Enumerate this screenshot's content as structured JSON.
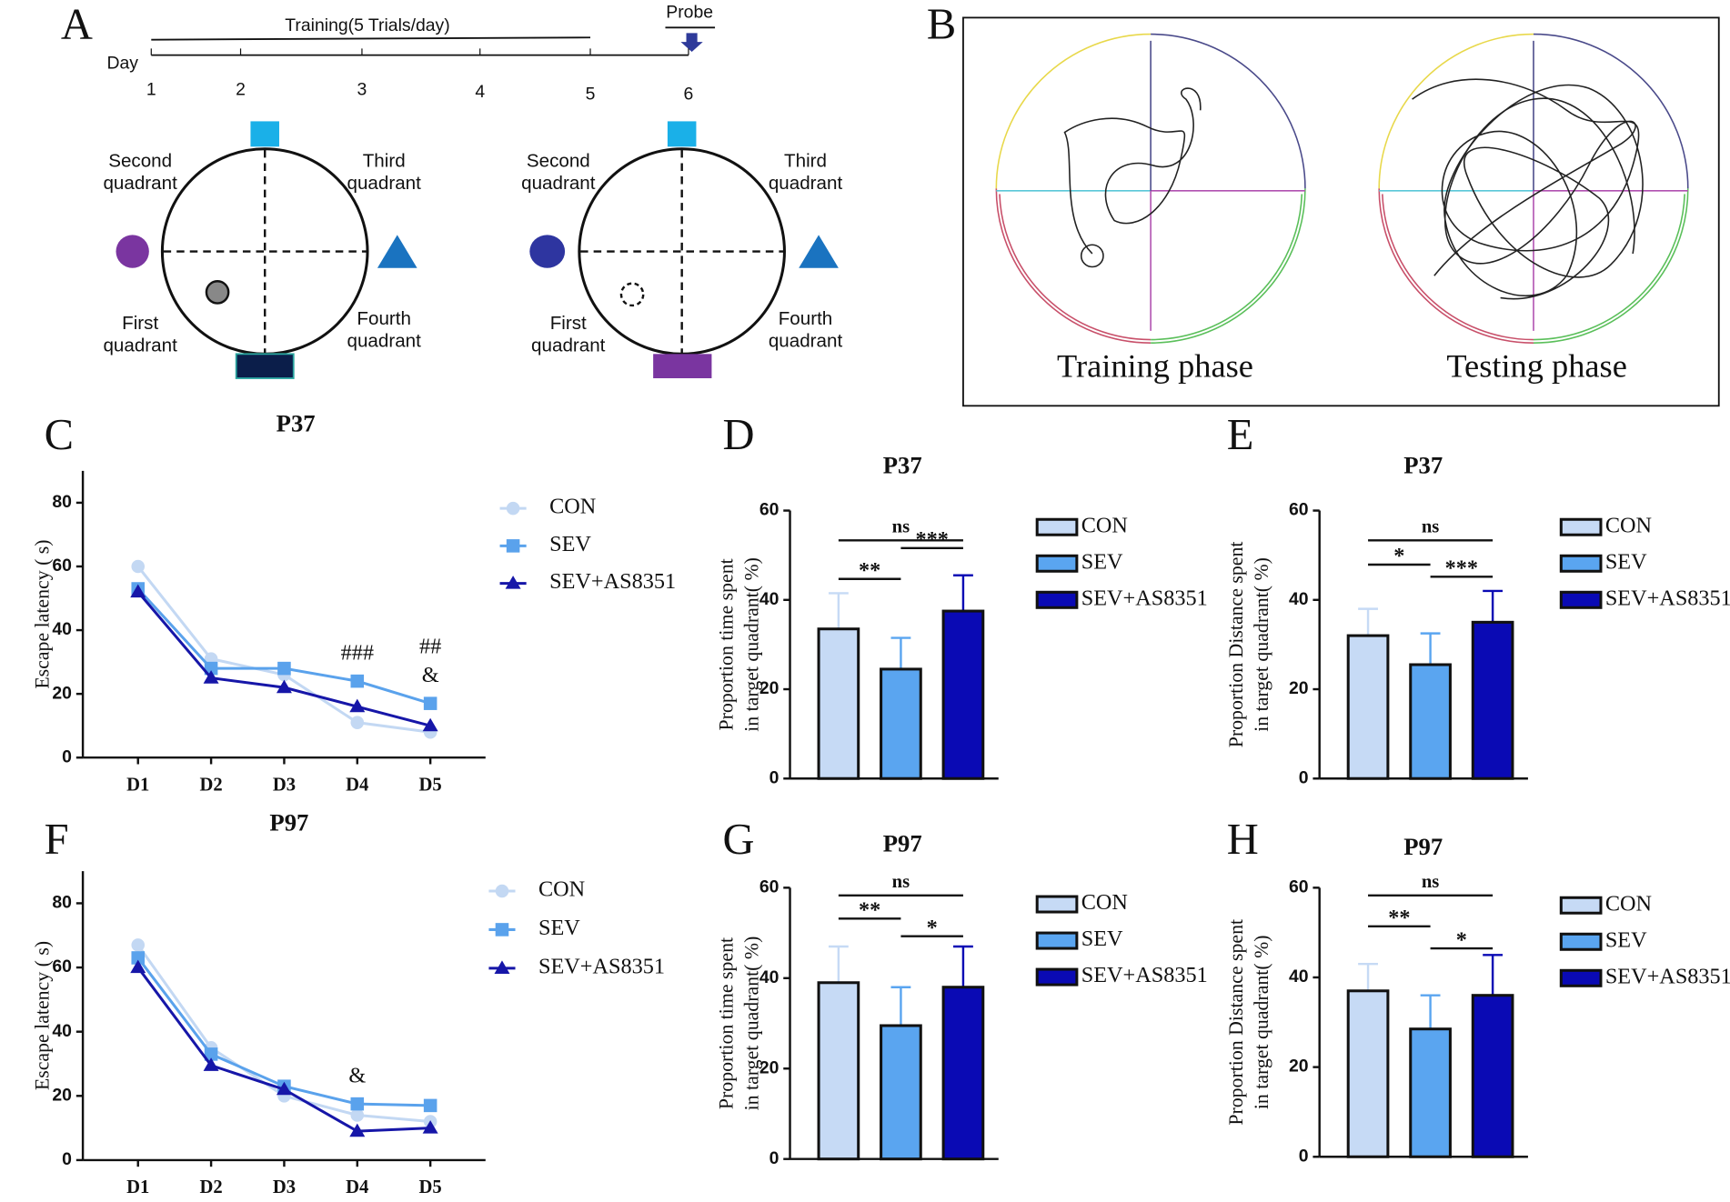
{
  "panel_a": {
    "letter": "A",
    "training": "Training(5 Trials/day)",
    "probe": "Probe",
    "day": "Day",
    "days": [
      1,
      2,
      3,
      4,
      5,
      6
    ],
    "diagrams": [
      {
        "quadrants": [
          [
            "Second",
            "quadrant"
          ],
          [
            "Third",
            "quadrant"
          ],
          [
            "First",
            "quadrant"
          ],
          [
            "Fourth",
            "quadrant"
          ]
        ]
      },
      {
        "quadrants": [
          [
            "Second",
            "quadrant"
          ],
          [
            "Third",
            "quadrant"
          ],
          [
            "First",
            "quadrant"
          ],
          [
            "Fourth",
            "quadrant"
          ]
        ]
      }
    ]
  },
  "panel_b": {
    "letter": "B",
    "labels": [
      "Training phase",
      "Testing phase"
    ]
  },
  "chart_data": [
    {
      "type": "line",
      "panel": "C",
      "title": "P37",
      "ylabel": [
        "Escape latency ( s)"
      ],
      "categories": [
        "D1",
        "D2",
        "D3",
        "D4",
        "D5"
      ],
      "ylim": [
        0,
        90
      ],
      "yticks": [
        0,
        20,
        40,
        60,
        80
      ],
      "series": [
        {
          "name": "CON",
          "color": "#c3d8f3",
          "marker": "circle",
          "values": [
            60,
            31,
            26,
            11,
            8
          ]
        },
        {
          "name": "SEV",
          "color": "#5aa2ec",
          "marker": "square",
          "values": [
            53,
            28,
            28,
            24,
            17
          ]
        },
        {
          "name": "SEV+AS8351",
          "color": "#1616a8",
          "marker": "triangle",
          "values": [
            52,
            25,
            22,
            16,
            10
          ]
        }
      ],
      "annotations": [
        {
          "text": "###",
          "x": "D4"
        },
        {
          "text": "##",
          "x": "D5"
        },
        {
          "text": "&",
          "x": "D5"
        }
      ]
    },
    {
      "type": "bar",
      "panel": "D",
      "title": "P37",
      "ylabel": [
        "Proportion time spent",
        "in target quadrant( %)"
      ],
      "categories": [
        "CON",
        "SEV",
        "SEV+AS8351"
      ],
      "colors": [
        "#c6daf5",
        "#5aa5f0",
        "#0a0ab4"
      ],
      "values": [
        33.5,
        24.5,
        37.5
      ],
      "errors": [
        8,
        7,
        8
      ],
      "ylim": [
        0,
        60
      ],
      "yticks": [
        0,
        20,
        40,
        60
      ],
      "significance": [
        "ns",
        "**",
        "***"
      ]
    },
    {
      "type": "bar",
      "panel": "E",
      "title": "P37",
      "ylabel": [
        "Proportion Distance spent",
        "in target quadrant( %)"
      ],
      "categories": [
        "CON",
        "SEV",
        "SEV+AS8351"
      ],
      "colors": [
        "#c6daf5",
        "#5aa5f0",
        "#0a0ab4"
      ],
      "values": [
        32,
        25.5,
        35
      ],
      "errors": [
        6,
        7,
        7
      ],
      "ylim": [
        0,
        60
      ],
      "yticks": [
        0,
        20,
        40,
        60
      ],
      "significance": [
        "ns",
        "*",
        "***"
      ]
    },
    {
      "type": "line",
      "panel": "F",
      "title": "P97",
      "ylabel": [
        "Escape latency ( s)"
      ],
      "categories": [
        "D1",
        "D2",
        "D3",
        "D4",
        "D5"
      ],
      "ylim": [
        0,
        90
      ],
      "yticks": [
        0,
        20,
        40,
        60,
        80
      ],
      "series": [
        {
          "name": "CON",
          "color": "#c3d8f3",
          "marker": "circle",
          "values": [
            67,
            35,
            20,
            14,
            12
          ]
        },
        {
          "name": "SEV",
          "color": "#5aa2ec",
          "marker": "square",
          "values": [
            63,
            33,
            23,
            17.5,
            17
          ]
        },
        {
          "name": "SEV+AS8351",
          "color": "#1616a8",
          "marker": "triangle",
          "values": [
            60,
            29.5,
            22,
            9,
            10
          ]
        }
      ],
      "annotations": [
        {
          "text": "&",
          "x": "D4"
        }
      ]
    },
    {
      "type": "bar",
      "panel": "G",
      "title": "P97",
      "ylabel": [
        "Proportion time spent",
        "in target quadrant( %)"
      ],
      "categories": [
        "CON",
        "SEV",
        "SEV+AS8351"
      ],
      "colors": [
        "#c6daf5",
        "#5aa5f0",
        "#0a0ab4"
      ],
      "values": [
        39,
        29.5,
        38
      ],
      "errors": [
        8,
        8.5,
        9
      ],
      "ylim": [
        0,
        60
      ],
      "yticks": [
        0,
        20,
        40,
        60
      ],
      "significance": [
        "ns",
        "**",
        "*"
      ]
    },
    {
      "type": "bar",
      "panel": "H",
      "title": "P97",
      "ylabel": [
        "Proportion Distance spent",
        "in target quadrant( %)"
      ],
      "categories": [
        "CON",
        "SEV",
        "SEV+AS8351"
      ],
      "colors": [
        "#c6daf5",
        "#5aa5f0",
        "#0a0ab4"
      ],
      "values": [
        37,
        28.5,
        36
      ],
      "errors": [
        6,
        7.5,
        9
      ],
      "ylim": [
        0,
        60
      ],
      "yticks": [
        0,
        20,
        40,
        60
      ],
      "significance": [
        "ns",
        "**",
        "*"
      ]
    }
  ]
}
